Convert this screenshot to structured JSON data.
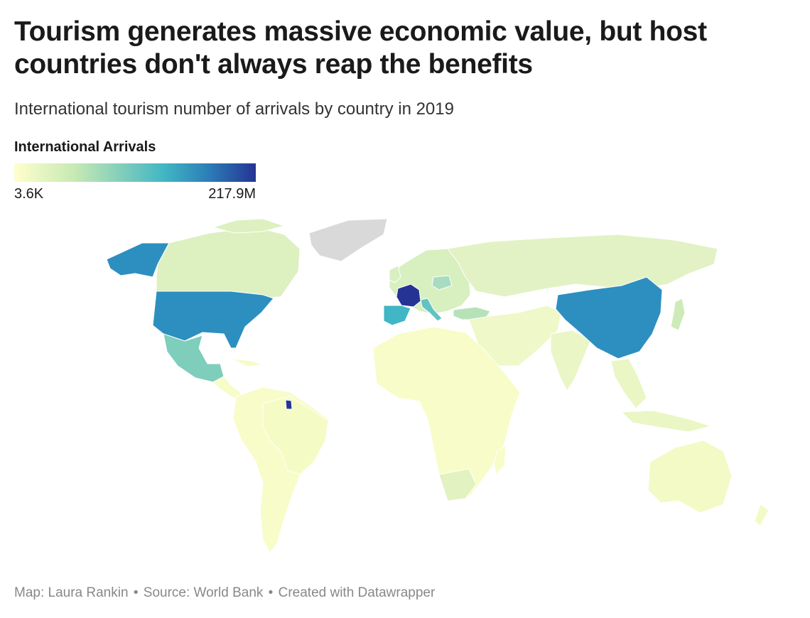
{
  "header": {
    "title": "Tourism generates massive economic value, but host countries don't always reap the benefits",
    "subtitle": "International tourism number of arrivals by country in 2019"
  },
  "legend": {
    "title": "International Arrivals",
    "min_label": "3.6K",
    "max_label": "217.9M",
    "scale_colors": [
      "#ffffcc",
      "#c7e9b4",
      "#7fcdbb",
      "#41b6c4",
      "#2c7fb8",
      "#253494"
    ],
    "no_data_color": "#d9d9d9"
  },
  "footer": {
    "map_credit": "Map: Laura Rankin",
    "separator": "•",
    "source": "Source: World Bank",
    "created_with": "Created with Datawrapper"
  },
  "regions": [
    {
      "name": "United States",
      "color": "#2c8fc0"
    },
    {
      "name": "Alaska",
      "color": "#2c8fc0"
    },
    {
      "name": "Canada",
      "color": "#ddf0c0"
    },
    {
      "name": "Greenland",
      "color": "#d9d9d9"
    },
    {
      "name": "Mexico",
      "color": "#7fcdbb"
    },
    {
      "name": "Central America",
      "color": "#f7fcc8"
    },
    {
      "name": "South America",
      "color": "#f8fcc8"
    },
    {
      "name": "Brazil",
      "color": "#f5fbc4"
    },
    {
      "name": "French Guiana",
      "color": "#253494"
    },
    {
      "name": "France",
      "color": "#253494"
    },
    {
      "name": "Spain",
      "color": "#41b6c4"
    },
    {
      "name": "Italy",
      "color": "#62c3c0"
    },
    {
      "name": "Europe",
      "color": "#d8efc0"
    },
    {
      "name": "Poland",
      "color": "#a8dcc0"
    },
    {
      "name": "Turkey",
      "color": "#b7e2b8"
    },
    {
      "name": "Russia",
      "color": "#e2f2c4"
    },
    {
      "name": "China",
      "color": "#2c8fc0"
    },
    {
      "name": "Africa",
      "color": "#f8fcc8"
    },
    {
      "name": "Southern Africa",
      "color": "#e2f2c0"
    },
    {
      "name": "Middle East",
      "color": "#eef8c8"
    },
    {
      "name": "India",
      "color": "#eaf6c6"
    },
    {
      "name": "Southeast Asia",
      "color": "#eaf6c4"
    },
    {
      "name": "Japan",
      "color": "#cdebb8"
    },
    {
      "name": "Australia",
      "color": "#f3fac6"
    }
  ]
}
